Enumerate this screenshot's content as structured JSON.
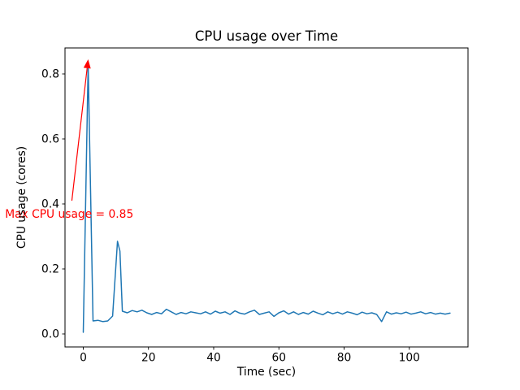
{
  "chart_data": {
    "type": "line",
    "title": "CPU usage over Time",
    "xlabel": "Time (sec)",
    "ylabel": "CPU usage (cores)",
    "x": [
      0,
      1.5,
      3,
      4.5,
      6,
      7.5,
      9,
      10.5,
      11.25,
      12,
      13.5,
      15,
      16.5,
      18,
      19.5,
      21,
      22.5,
      24,
      25.5,
      27,
      28.5,
      30,
      31.5,
      33,
      34.5,
      36,
      37.5,
      39,
      40.5,
      42,
      43.5,
      45,
      46.5,
      48,
      49.5,
      51,
      52.5,
      54,
      55.5,
      57,
      58.5,
      60,
      61.5,
      63,
      64.5,
      66,
      67.5,
      69,
      70.5,
      72,
      73.5,
      75,
      76.5,
      78,
      79.5,
      81,
      82.5,
      84,
      85.5,
      87,
      88.5,
      90,
      91.5,
      93,
      94.5,
      96,
      97.5,
      99,
      100.5,
      102,
      103.5,
      105,
      106.5,
      108,
      109.5,
      111,
      112.5
    ],
    "y": [
      0.005,
      0.83,
      0.04,
      0.042,
      0.038,
      0.04,
      0.055,
      0.285,
      0.255,
      0.07,
      0.065,
      0.072,
      0.068,
      0.073,
      0.065,
      0.06,
      0.066,
      0.062,
      0.076,
      0.068,
      0.06,
      0.066,
      0.062,
      0.068,
      0.065,
      0.062,
      0.068,
      0.061,
      0.07,
      0.064,
      0.068,
      0.06,
      0.071,
      0.064,
      0.061,
      0.068,
      0.073,
      0.06,
      0.064,
      0.068,
      0.054,
      0.065,
      0.071,
      0.061,
      0.068,
      0.06,
      0.066,
      0.061,
      0.07,
      0.064,
      0.059,
      0.068,
      0.062,
      0.067,
      0.061,
      0.068,
      0.064,
      0.059,
      0.067,
      0.062,
      0.065,
      0.06,
      0.038,
      0.068,
      0.061,
      0.065,
      0.062,
      0.067,
      0.061,
      0.064,
      0.068,
      0.062,
      0.066,
      0.061,
      0.064,
      0.061,
      0.064
    ],
    "xlim": [
      -5.6,
      118
    ],
    "ylim": [
      -0.04,
      0.88
    ],
    "x_ticks": [
      0,
      20,
      40,
      60,
      80,
      100
    ],
    "y_ticks": [
      0.0,
      0.2,
      0.4,
      0.6,
      0.8
    ],
    "line_color": "#1f77b4",
    "grid": false,
    "legend": "none",
    "annotation": {
      "text": "Max CPU usage = 0.85",
      "color": "red",
      "arrow_tip": [
        1.5,
        0.845
      ],
      "arrow_start": [
        -3.5,
        0.41
      ],
      "text_pos": [
        -24,
        0.3575
      ]
    }
  }
}
